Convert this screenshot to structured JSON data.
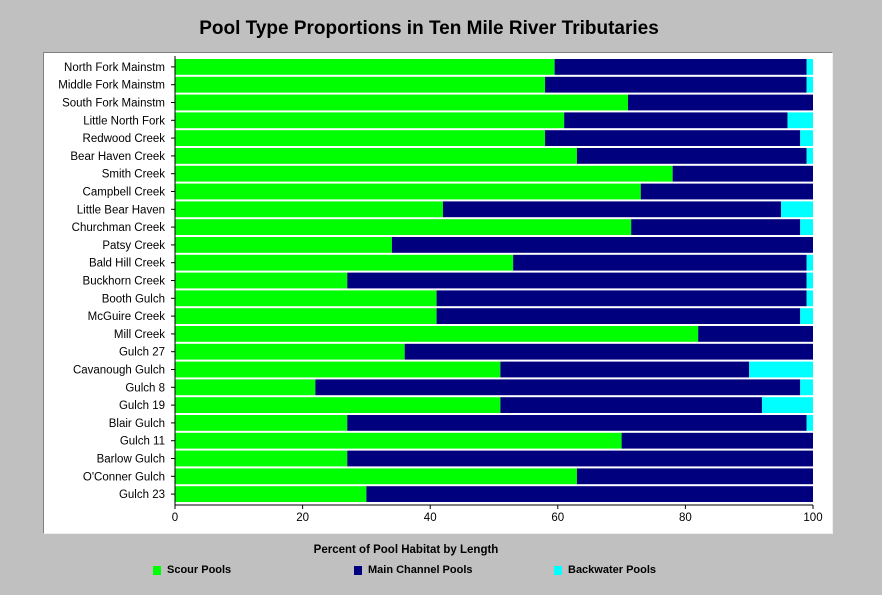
{
  "chart_data": {
    "type": "bar",
    "orientation": "horizontal",
    "stacked": true,
    "title": "Pool Type Proportions in Ten Mile River Tributaries",
    "xlabel": "Percent of Pool Habitat by Length",
    "ylabel": "",
    "xlim": [
      0,
      100
    ],
    "xticks": [
      0,
      20,
      40,
      60,
      80,
      100
    ],
    "grid": false,
    "legend_position": "bottom",
    "categories": [
      "North Fork Mainstm",
      "Middle Fork Mainstm",
      "South Fork Mainstm",
      "Little North Fork",
      "Redwood Creek",
      "Bear Haven Creek",
      "Smith Creek",
      "Campbell Creek",
      "Little Bear Haven",
      "Churchman Creek",
      "Patsy Creek",
      "Bald Hill Creek",
      "Buckhorn Creek",
      "Booth Gulch",
      "McGuire Creek",
      "Mill Creek",
      "Gulch 27",
      "Cavanough Gulch",
      "Gulch 8",
      "Gulch 19",
      "Blair Gulch",
      "Gulch 11",
      "Barlow Gulch",
      "O'Conner Gulch",
      "Gulch 23"
    ],
    "series": [
      {
        "name": "Scour Pools",
        "color": "#00ff00",
        "values": [
          59.5,
          58,
          71,
          61,
          58,
          63,
          78,
          73,
          42,
          71.5,
          34,
          53,
          27,
          41,
          41,
          82,
          36,
          51,
          22,
          51,
          27,
          70,
          27,
          63,
          30
        ]
      },
      {
        "name": "Main Channel Pools",
        "color": "#00007f",
        "values": [
          39.5,
          41,
          29,
          35,
          40,
          36,
          22,
          27,
          53,
          26.5,
          66,
          46,
          72,
          58,
          57,
          18,
          64,
          39,
          76,
          41,
          72,
          30,
          73,
          37,
          70
        ]
      },
      {
        "name": "Backwater Pools",
        "color": "#00ffff",
        "values": [
          1,
          1,
          0,
          4,
          2,
          1,
          0,
          0,
          5,
          2,
          0,
          1,
          1,
          1,
          2,
          0,
          0,
          10,
          2,
          8,
          1,
          0,
          0,
          0,
          0
        ]
      }
    ]
  }
}
